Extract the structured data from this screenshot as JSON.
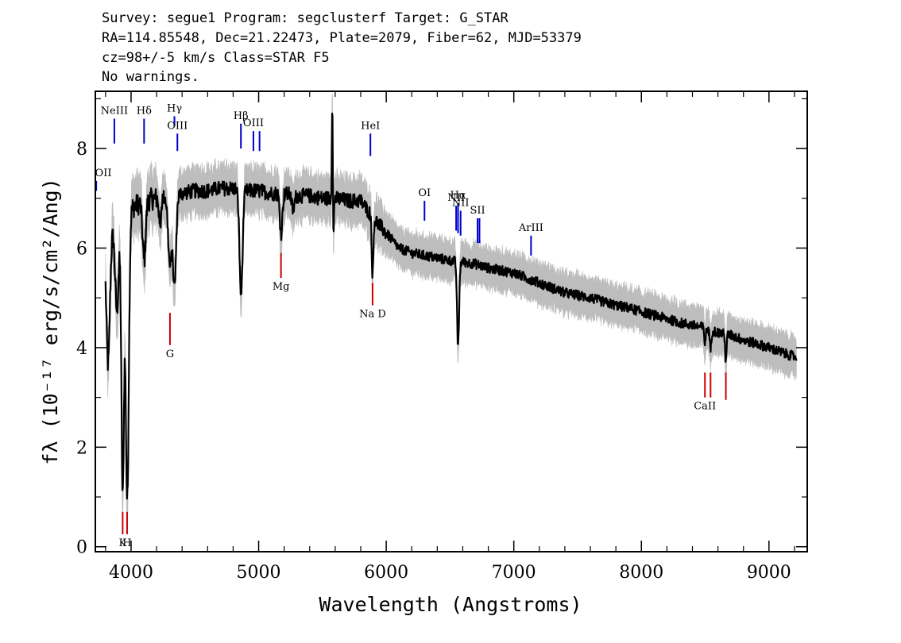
{
  "header": {
    "line1": "Survey: segue1 Program: segclusterf Target: G_STAR",
    "line2": "RA=114.85548, Dec=21.22473, Plate=2079, Fiber=62, MJD=53379",
    "line3": "cz=98+/-5 km/s Class=STAR F5",
    "line4": "No warnings."
  },
  "chart_data": {
    "type": "line",
    "xlabel": "Wavelength (Angstroms)",
    "ylabel": "fλ (10⁻¹⁷ erg/s/cm²/Ang)",
    "xlim": [
      3720,
      9300
    ],
    "ylim": [
      -0.1,
      9.15
    ],
    "xticks": [
      4000,
      5000,
      6000,
      7000,
      8000,
      9000
    ],
    "yticks": [
      0,
      2,
      4,
      6,
      8
    ],
    "grid": false,
    "legend": "none",
    "colors": {
      "flux": "#000000",
      "error_band": "#bdbdbd",
      "emission": "#0000cc",
      "absorption": "#cc0000"
    },
    "continuum": {
      "x": [
        3800,
        3900,
        4000,
        4100,
        4200,
        4300,
        4400,
        4500,
        4600,
        4700,
        4800,
        4900,
        5000,
        5100,
        5200,
        5300,
        5400,
        5500,
        5600,
        5700,
        5800,
        5900,
        6000,
        6100,
        6200,
        6300,
        6400,
        6500,
        6600,
        6700,
        6800,
        6900,
        7000,
        7100,
        7200,
        7300,
        7400,
        7500,
        7600,
        7700,
        7800,
        7900,
        8000,
        8100,
        8200,
        8300,
        8400,
        8500,
        8600,
        8700,
        8800,
        8900,
        9000,
        9100,
        9200
      ],
      "y": [
        6.2,
        6.6,
        6.8,
        6.95,
        7.0,
        7.05,
        7.1,
        7.15,
        7.15,
        7.2,
        7.2,
        7.15,
        7.15,
        7.1,
        7.1,
        7.05,
        7.05,
        7.0,
        7.0,
        6.95,
        6.95,
        6.6,
        6.3,
        6.0,
        5.9,
        5.85,
        5.8,
        5.75,
        5.72,
        5.68,
        5.6,
        5.55,
        5.5,
        5.4,
        5.3,
        5.2,
        5.1,
        5.05,
        5.0,
        4.92,
        4.85,
        4.8,
        4.72,
        4.65,
        4.58,
        4.5,
        4.45,
        4.4,
        4.3,
        4.25,
        4.15,
        4.08,
        4.0,
        3.9,
        3.82
      ]
    },
    "features": [
      {
        "x": 3820,
        "depth": 2.6,
        "width": 14
      },
      {
        "x": 3889,
        "depth": 1.8,
        "width": 14
      },
      {
        "x": 3934,
        "depth": 5.6,
        "width": 10
      },
      {
        "x": 3970,
        "depth": 5.8,
        "width": 12
      },
      {
        "x": 4102,
        "depth": 1.2,
        "width": 12
      },
      {
        "x": 4227,
        "depth": 0.6,
        "width": 8
      },
      {
        "x": 4305,
        "depth": 1.4,
        "width": 14
      },
      {
        "x": 4341,
        "depth": 1.8,
        "width": 12
      },
      {
        "x": 4862,
        "depth": 2.1,
        "width": 12
      },
      {
        "x": 5176,
        "depth": 0.8,
        "width": 10
      },
      {
        "x": 5270,
        "depth": 0.3,
        "width": 10
      },
      {
        "x": 5578,
        "depth": -2.2,
        "width": 4
      },
      {
        "x": 5585,
        "depth": 1.1,
        "width": 4
      },
      {
        "x": 5893,
        "depth": 1.2,
        "width": 6
      },
      {
        "x": 6563,
        "depth": 1.7,
        "width": 8
      },
      {
        "x": 8498,
        "depth": 0.3,
        "width": 6
      },
      {
        "x": 8542,
        "depth": 0.4,
        "width": 6
      },
      {
        "x": 8662,
        "depth": 0.5,
        "width": 6
      }
    ],
    "line_labels": [
      {
        "name": "OII",
        "x": 3727,
        "type": "emission",
        "y_top": 7.35,
        "y_bot": 7.15,
        "label": "OII"
      },
      {
        "name": "NeIII",
        "x": 3869,
        "type": "emission",
        "y_top": 8.6,
        "y_bot": 8.1,
        "label": "NeIII"
      },
      {
        "name": "H-delta",
        "x": 4102,
        "type": "emission",
        "y_top": 8.6,
        "y_bot": 8.1,
        "label": "Hδ"
      },
      {
        "name": "H-gamma",
        "x": 4340,
        "type": "emission",
        "y_top": 8.65,
        "y_bot": 8.45,
        "label": "Hγ"
      },
      {
        "name": "OIII-4363",
        "x": 4363,
        "type": "emission",
        "y_top": 8.3,
        "y_bot": 7.95,
        "label": "OIII"
      },
      {
        "name": "H-beta",
        "x": 4861,
        "type": "emission",
        "y_top": 8.5,
        "y_bot": 8.0,
        "label": "Hβ"
      },
      {
        "name": "OIII-4959",
        "x": 4959,
        "type": "emission",
        "y_top": 8.35,
        "y_bot": 7.95,
        "label": "OIII"
      },
      {
        "name": "OIII-5007",
        "x": 5007,
        "type": "emission",
        "y_top": 8.35,
        "y_bot": 7.95,
        "label": ""
      },
      {
        "name": "HeI",
        "x": 5876,
        "type": "emission",
        "y_top": 8.3,
        "y_bot": 7.85,
        "label": "HeI"
      },
      {
        "name": "OI",
        "x": 6300,
        "type": "emission",
        "y_top": 6.95,
        "y_bot": 6.55,
        "label": "OI"
      },
      {
        "name": "NII-6548",
        "x": 6548,
        "type": "emission",
        "y_top": 6.85,
        "y_bot": 6.35,
        "label": "NII"
      },
      {
        "name": "H-alpha",
        "x": 6563,
        "type": "emission",
        "y_top": 6.9,
        "y_bot": 6.3,
        "label": "Hα"
      },
      {
        "name": "NII-6583",
        "x": 6583,
        "type": "emission",
        "y_top": 6.75,
        "y_bot": 6.25,
        "label": "NII"
      },
      {
        "name": "SII-6716",
        "x": 6716,
        "type": "emission",
        "y_top": 6.6,
        "y_bot": 6.1,
        "label": "SII"
      },
      {
        "name": "SII-6731",
        "x": 6731,
        "type": "emission",
        "y_top": 6.6,
        "y_bot": 6.1,
        "label": ""
      },
      {
        "name": "ArIII",
        "x": 7135,
        "type": "emission",
        "y_top": 6.25,
        "y_bot": 5.85,
        "label": "ArIII"
      },
      {
        "name": "Mg",
        "x": 5175,
        "type": "absorption",
        "y_top": 5.9,
        "y_bot": 5.4,
        "label": "Mg"
      },
      {
        "name": "G",
        "x": 4305,
        "type": "absorption",
        "y_top": 4.7,
        "y_bot": 4.05,
        "label": "G"
      },
      {
        "name": "Na-D",
        "x": 5893,
        "type": "absorption",
        "y_top": 5.3,
        "y_bot": 4.85,
        "label": "Na D"
      },
      {
        "name": "K",
        "x": 3934,
        "type": "absorption",
        "y_top": 0.7,
        "y_bot": 0.25,
        "label": "K"
      },
      {
        "name": "H",
        "x": 3969,
        "type": "absorption",
        "y_top": 0.7,
        "y_bot": 0.25,
        "label": "H"
      },
      {
        "name": "CaII-8498",
        "x": 8498,
        "type": "absorption",
        "y_top": 3.5,
        "y_bot": 3.0,
        "label": "CaII"
      },
      {
        "name": "CaII-8542",
        "x": 8542,
        "type": "absorption",
        "y_top": 3.5,
        "y_bot": 3.0,
        "label": ""
      },
      {
        "name": "CaII-8662",
        "x": 8662,
        "type": "absorption",
        "y_top": 3.5,
        "y_bot": 2.95,
        "label": ""
      }
    ]
  }
}
